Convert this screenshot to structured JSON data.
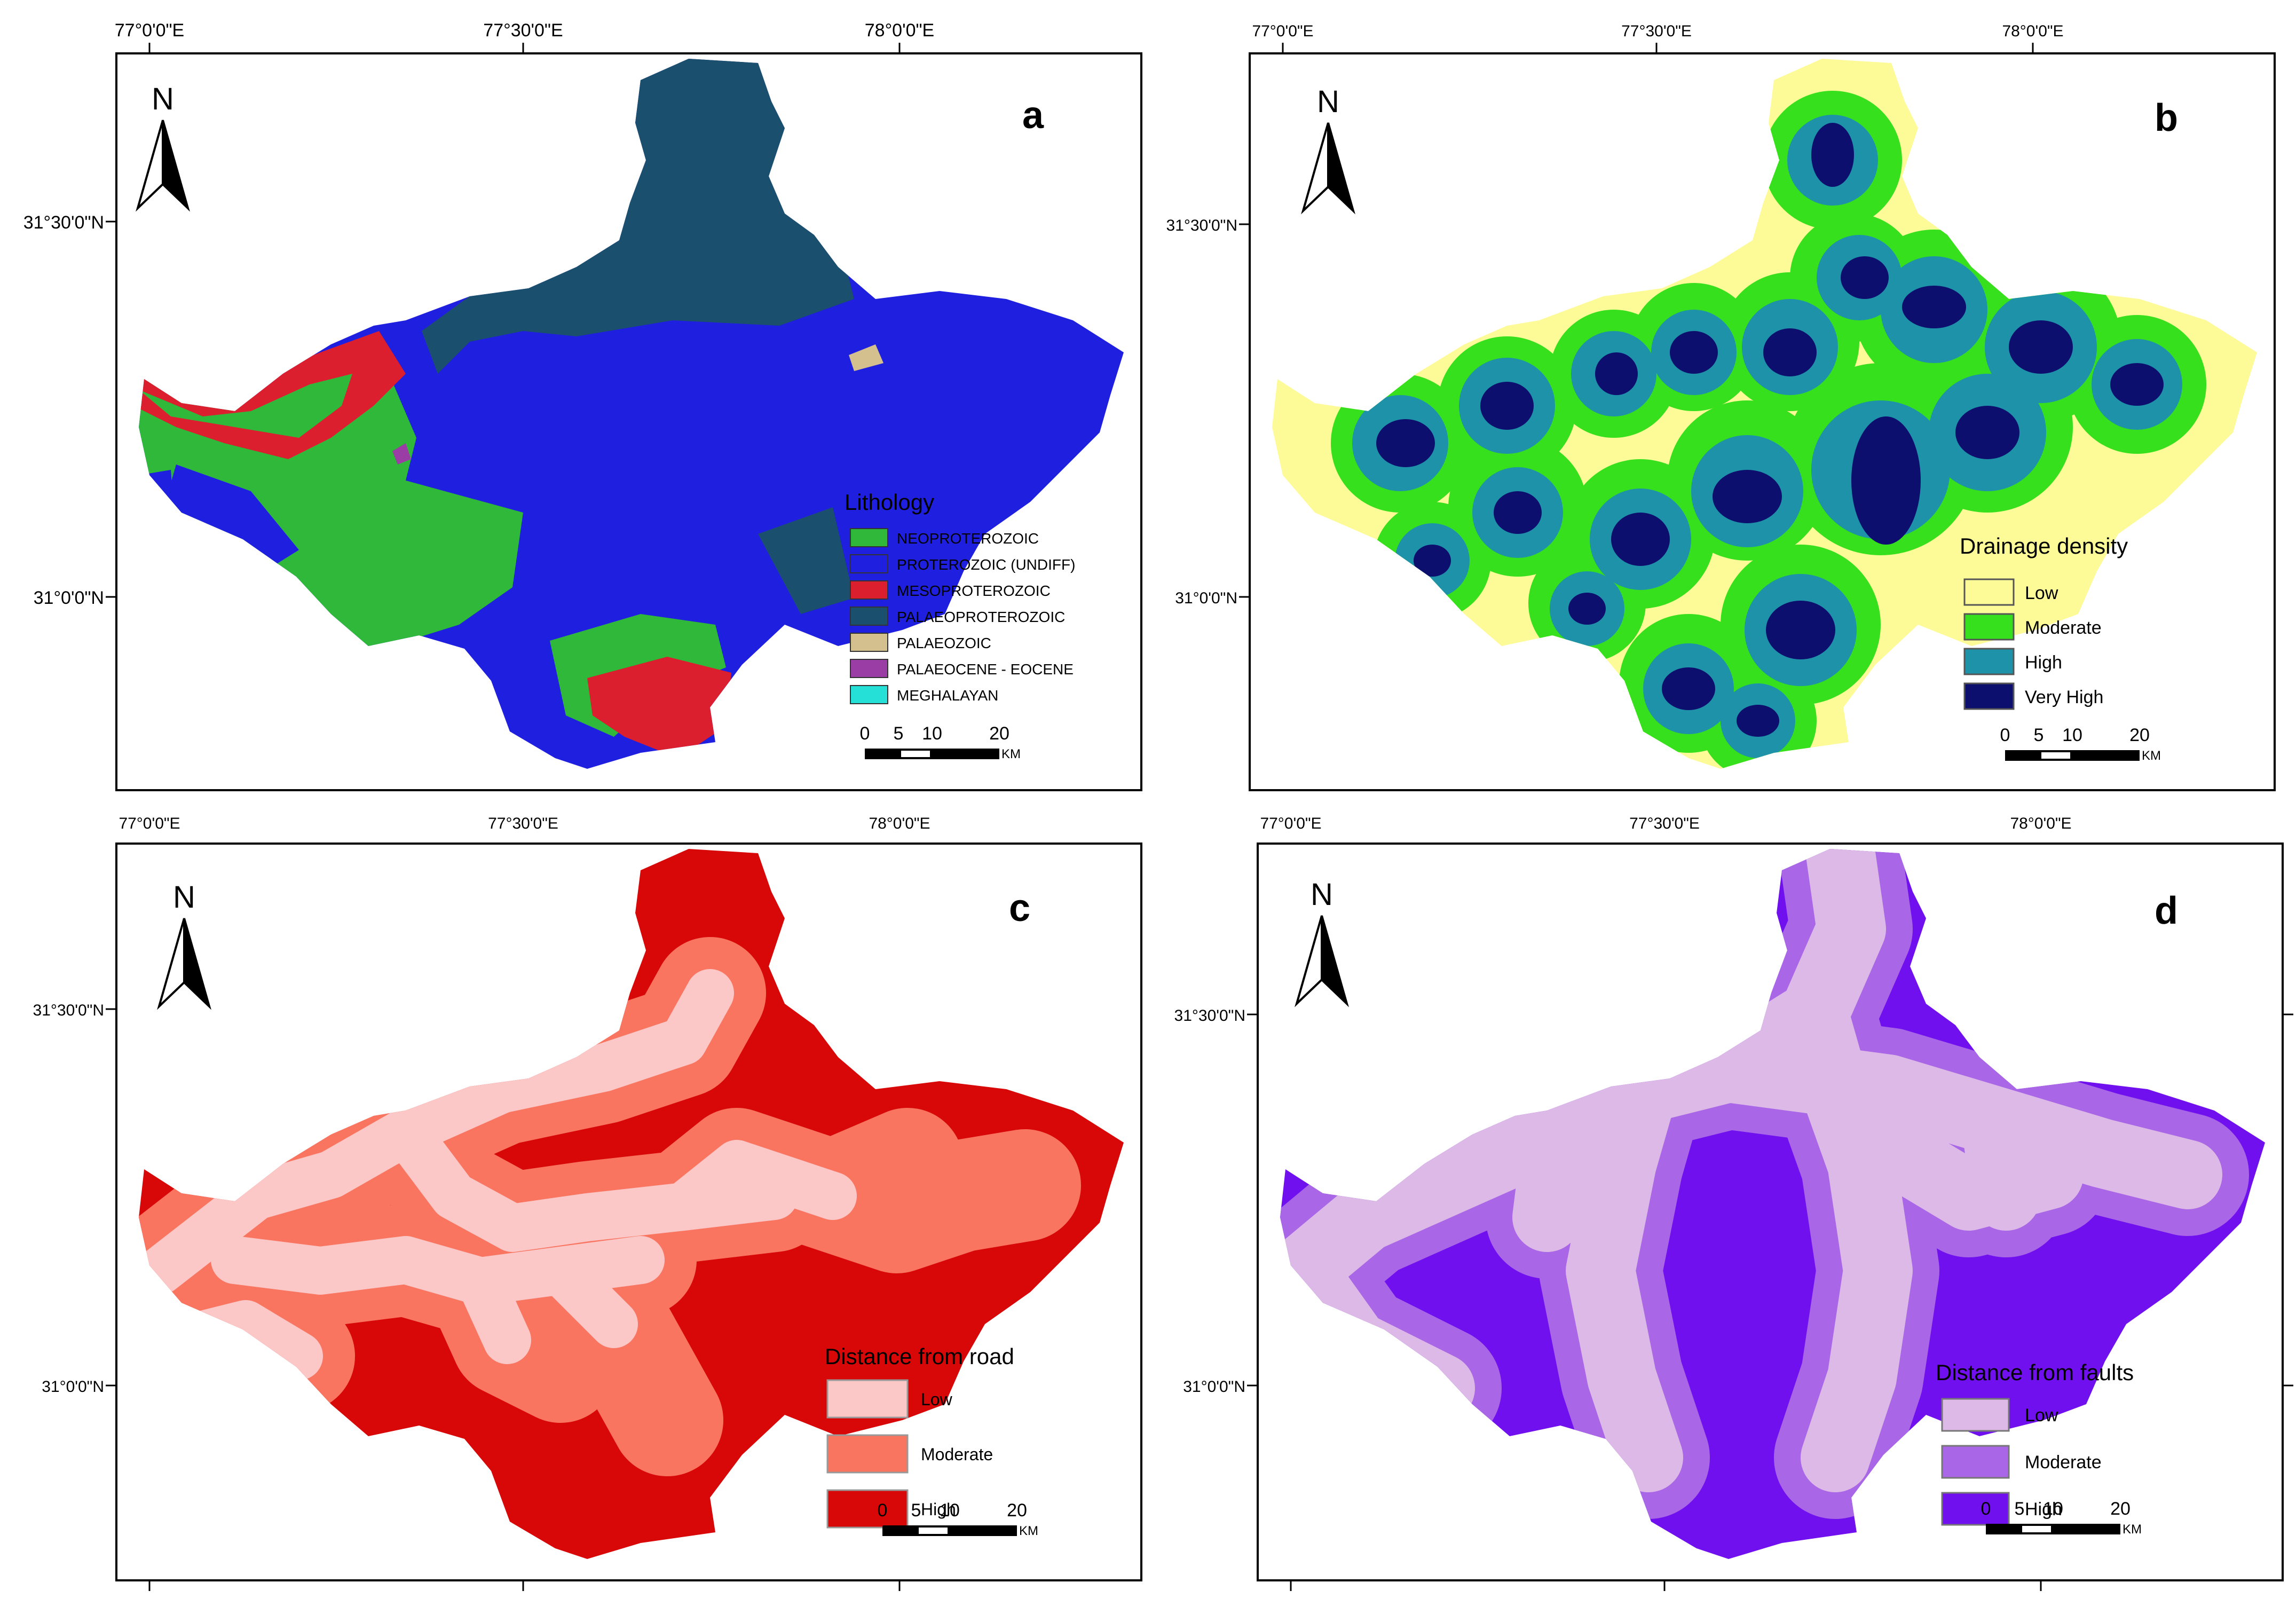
{
  "panels": [
    {
      "letter": "a",
      "x_ticks": [
        "77°0'0\"E",
        "77°30'0\"E",
        "78°0'0\"E"
      ],
      "y_ticks": [
        "31°30'0\"N",
        "31°0'0\"N"
      ],
      "north_label": "N",
      "legend": {
        "title": "Lithology",
        "items": [
          {
            "label": "NEOPROTEROZOIC",
            "color": "#2fb83a"
          },
          {
            "label": "PROTEROZOIC (UNDIFF)",
            "color": "#1f1fe0"
          },
          {
            "label": "MESOPROTEROZOIC",
            "color": "#dc1f2e"
          },
          {
            "label": "PALAEOPROTEROZOIC",
            "color": "#1a4f6e"
          },
          {
            "label": "PALAEOZOIC",
            "color": "#d4bf8f"
          },
          {
            "label": "PALAEOCENE - EOCENE",
            "color": "#9a3ea6"
          },
          {
            "label": "MEGHALAYAN",
            "color": "#25e0d6"
          }
        ]
      },
      "scale": {
        "ticks": [
          "0",
          "5",
          "10",
          "20"
        ],
        "unit": "KM"
      }
    },
    {
      "letter": "b",
      "x_ticks": [
        "77°0'0\"E",
        "77°30'0\"E",
        "78°0'0\"E"
      ],
      "y_ticks": [
        "31°30'0\"N",
        "31°0'0\"N"
      ],
      "north_label": "N",
      "legend": {
        "title": "Drainage density",
        "items": [
          {
            "label": "Low",
            "color": "#fdfb97"
          },
          {
            "label": "Moderate",
            "color": "#36e01c"
          },
          {
            "label": "High",
            "color": "#1e92a8"
          },
          {
            "label": "Very High",
            "color": "#0c0f6e"
          }
        ]
      },
      "scale": {
        "ticks": [
          "0",
          "5",
          "10",
          "20"
        ],
        "unit": "KM"
      }
    },
    {
      "letter": "c",
      "x_ticks": [
        "77°0'0\"E",
        "77°30'0\"E",
        "78°0'0\"E"
      ],
      "y_ticks": [
        "31°30'0\"N",
        "31°0'0\"N"
      ],
      "north_label": "N",
      "legend": {
        "title": "Distance from road",
        "items": [
          {
            "label": "Low",
            "color": "#fcc7c7"
          },
          {
            "label": "Moderate",
            "color": "#f97560"
          },
          {
            "label": "High",
            "color": "#d80808"
          }
        ]
      },
      "scale": {
        "ticks": [
          "0",
          "5",
          "10",
          "20"
        ],
        "unit": "KM"
      }
    },
    {
      "letter": "d",
      "x_ticks": [
        "77°0'0\"E",
        "77°30'0\"E",
        "78°0'0\"E"
      ],
      "y_ticks": [
        "31°30'0\"N",
        "31°0'0\"N"
      ],
      "north_label": "N",
      "legend": {
        "title": "Distance from faults",
        "items": [
          {
            "label": "Low",
            "color": "#dcb9e6"
          },
          {
            "label": "Moderate",
            "color": "#a966e6"
          },
          {
            "label": "High",
            "color": "#7010ee"
          }
        ]
      },
      "scale": {
        "ticks": [
          "0",
          "5",
          "10",
          "20"
        ],
        "unit": "KM"
      }
    }
  ]
}
